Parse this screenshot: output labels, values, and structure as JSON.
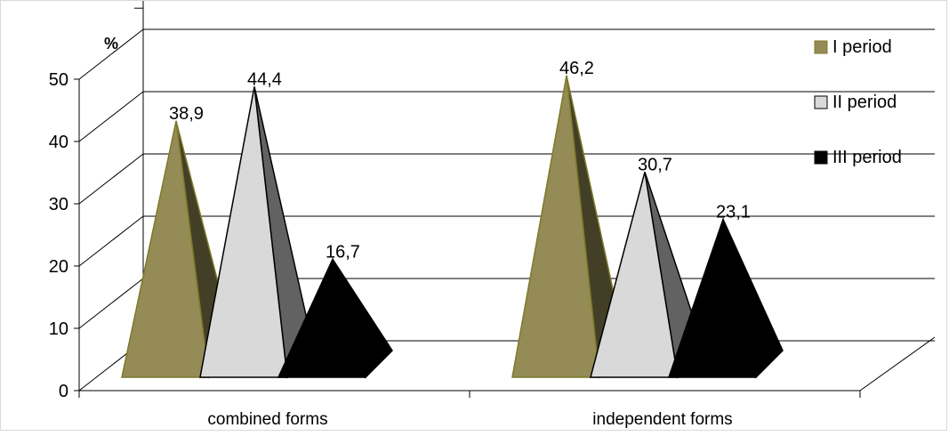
{
  "chart_data": {
    "type": "bar",
    "style": "3d-pyramid",
    "title": "",
    "ylabel": "%",
    "xlabel": "",
    "ylim": [
      0,
      50
    ],
    "yticks": [
      "0",
      "10",
      "20",
      "30",
      "40",
      "50"
    ],
    "grid": true,
    "legend_position": "right",
    "categories": [
      "combined forms",
      "independent forms"
    ],
    "series": [
      {
        "name": "I period",
        "color": "#958b56",
        "values": [
          38.9,
          46.2
        ],
        "labels": [
          "38,9",
          "46,2"
        ]
      },
      {
        "name": "II period",
        "color": "#d9d9d9",
        "values": [
          44.4,
          30.7
        ],
        "labels": [
          "44,4",
          "30,7"
        ]
      },
      {
        "name": "III period",
        "color": "#000000",
        "values": [
          16.7,
          23.1
        ],
        "labels": [
          "16,7",
          "23,1"
        ]
      }
    ]
  }
}
